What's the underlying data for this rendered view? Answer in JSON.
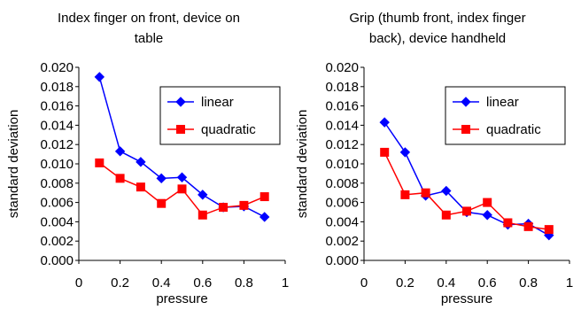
{
  "chart_data": [
    {
      "type": "line",
      "title_lines": [
        "Index finger on front, device on",
        "table"
      ],
      "xlabel": "pressure",
      "ylabel": "standard deviation",
      "xlim": [
        0,
        1
      ],
      "ylim": [
        0,
        0.02
      ],
      "xticks": [
        "0",
        "0.2",
        "0.4",
        "0.6",
        "0.8",
        "1"
      ],
      "yticks": [
        "0.000",
        "0.002",
        "0.004",
        "0.006",
        "0.008",
        "0.010",
        "0.012",
        "0.014",
        "0.016",
        "0.018",
        "0.020"
      ],
      "x": [
        0.1,
        0.2,
        0.3,
        0.4,
        0.5,
        0.6,
        0.7,
        0.8,
        0.9
      ],
      "series": [
        {
          "name": "linear",
          "color": "#0000ff",
          "marker": "diamond",
          "values": [
            0.019,
            0.0113,
            0.0102,
            0.0085,
            0.0086,
            0.0068,
            0.0055,
            0.0056,
            0.0045
          ]
        },
        {
          "name": "quadratic",
          "color": "#ff0000",
          "marker": "square",
          "values": [
            0.0101,
            0.0085,
            0.0076,
            0.0059,
            0.0074,
            0.0047,
            0.0055,
            0.0057,
            0.0066
          ]
        }
      ],
      "grid": false,
      "legend": "top-right"
    },
    {
      "type": "line",
      "title_lines": [
        "Grip (thumb front, index finger",
        "back), device handheld"
      ],
      "xlabel": "pressure",
      "ylabel": "standard deviation",
      "xlim": [
        0,
        1
      ],
      "ylim": [
        0,
        0.02
      ],
      "xticks": [
        "0",
        "0.2",
        "0.4",
        "0.6",
        "0.8",
        "1"
      ],
      "yticks": [
        "0.000",
        "0.002",
        "0.004",
        "0.006",
        "0.008",
        "0.010",
        "0.012",
        "0.014",
        "0.016",
        "0.018",
        "0.020"
      ],
      "x": [
        0.1,
        0.2,
        0.3,
        0.4,
        0.5,
        0.6,
        0.7,
        0.8,
        0.9
      ],
      "series": [
        {
          "name": "linear",
          "color": "#0000ff",
          "marker": "diamond",
          "values": [
            0.0143,
            0.0112,
            0.0067,
            0.0072,
            0.005,
            0.0047,
            0.0037,
            0.0038,
            0.0026
          ]
        },
        {
          "name": "quadratic",
          "color": "#ff0000",
          "marker": "square",
          "values": [
            0.0112,
            0.0068,
            0.007,
            0.0047,
            0.0051,
            0.006,
            0.0039,
            0.0035,
            0.0032
          ]
        }
      ],
      "grid": false,
      "legend": "top-right"
    }
  ]
}
